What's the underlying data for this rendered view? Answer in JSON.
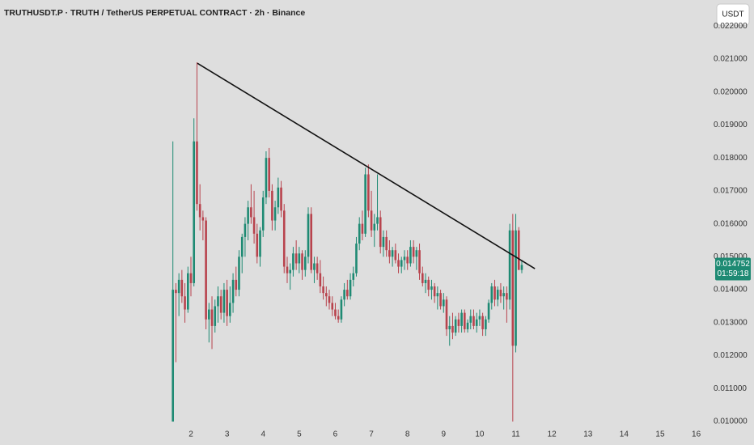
{
  "chart_data": {
    "type": "candlestick",
    "title": "TRUTHUSDT.P · TRUTH / TetherUS PERPETUAL CONTRACT · 2h · Binance",
    "currency_button": "USDT",
    "countdown": "01:59:18",
    "up_color": "#1e8a73",
    "down_color": "#b8434d",
    "grid": false,
    "x": [
      1.5,
      1.583,
      1.667,
      1.75,
      1.833,
      1.917,
      2,
      2.083,
      2.167,
      2.25,
      2.333,
      2.417,
      2.5,
      2.583,
      2.667,
      2.75,
      2.833,
      2.917,
      3,
      3.083,
      3.167,
      3.25,
      3.333,
      3.417,
      3.5,
      3.583,
      3.667,
      3.75,
      3.833,
      3.917,
      4,
      4.083,
      4.167,
      4.25,
      4.333,
      4.417,
      4.5,
      4.583,
      4.667,
      4.75,
      4.833,
      4.917,
      5,
      5.083,
      5.167,
      5.25,
      5.333,
      5.417,
      5.5,
      5.583,
      5.667,
      5.75,
      5.833,
      5.917,
      6,
      6.083,
      6.167,
      6.25,
      6.333,
      6.417,
      6.5,
      6.583,
      6.667,
      6.75,
      6.833,
      6.917,
      7,
      7.083,
      7.167,
      7.25,
      7.333,
      7.417,
      7.5,
      7.583,
      7.667,
      7.75,
      7.833,
      7.917,
      8,
      8.083,
      8.167,
      8.25,
      8.333,
      8.417,
      8.5,
      8.583,
      8.667,
      8.75,
      8.833,
      8.917,
      9,
      9.083,
      9.167,
      9.25,
      9.333,
      9.417,
      9.5,
      9.583,
      9.667,
      9.75,
      9.833,
      9.917,
      10,
      10.083,
      10.167,
      10.25,
      10.333,
      10.417,
      10.5,
      10.583,
      10.667,
      10.75,
      10.833,
      10.917,
      11,
      11.083,
      11.167
    ],
    "open": [
      0.01,
      0.014,
      0.0139,
      0.0143,
      0.0138,
      0.0134,
      0.0145,
      0.0142,
      0.0185,
      0.0166,
      0.0162,
      0.0161,
      0.0131,
      0.0134,
      0.0129,
      0.0135,
      0.0138,
      0.0133,
      0.014,
      0.0132,
      0.0136,
      0.0143,
      0.014,
      0.015,
      0.0156,
      0.016,
      0.0165,
      0.0162,
      0.0157,
      0.015,
      0.0158,
      0.0168,
      0.018,
      0.017,
      0.0161,
      0.0165,
      0.0171,
      0.0164,
      0.0147,
      0.0145,
      0.0146,
      0.0151,
      0.0148,
      0.0151,
      0.0146,
      0.015,
      0.0163,
      0.0146,
      0.0148,
      0.0145,
      0.0141,
      0.0139,
      0.0138,
      0.0136,
      0.0134,
      0.0132,
      0.0131,
      0.0137,
      0.014,
      0.0138,
      0.0143,
      0.0145,
      0.0154,
      0.016,
      0.0157,
      0.0175,
      0.0164,
      0.0158,
      0.016,
      0.0162,
      0.0153,
      0.0156,
      0.0152,
      0.015,
      0.0152,
      0.0149,
      0.0147,
      0.0149,
      0.015,
      0.0148,
      0.0153,
      0.015,
      0.0152,
      0.0145,
      0.0142,
      0.0143,
      0.014,
      0.0141,
      0.0138,
      0.0139,
      0.0135,
      0.0137,
      0.0128,
      0.0129,
      0.0127,
      0.0131,
      0.0129,
      0.0133,
      0.0128,
      0.013,
      0.0132,
      0.0129,
      0.0131,
      0.0132,
      0.0128,
      0.0131,
      0.0136,
      0.0141,
      0.0137,
      0.014,
      0.0138,
      0.0139,
      0.0137,
      0.0158,
      0.0123,
      0.0158,
      0.0146
    ],
    "high": [
      0.0185,
      0.0142,
      0.0145,
      0.0146,
      0.0142,
      0.0147,
      0.015,
      0.0192,
      0.0209,
      0.0172,
      0.0164,
      0.0162,
      0.0136,
      0.0138,
      0.0137,
      0.0141,
      0.014,
      0.0142,
      0.0143,
      0.0141,
      0.0145,
      0.0147,
      0.0152,
      0.0157,
      0.0162,
      0.0167,
      0.0172,
      0.017,
      0.016,
      0.0159,
      0.017,
      0.0182,
      0.0183,
      0.0172,
      0.0167,
      0.0174,
      0.0173,
      0.0166,
      0.015,
      0.0148,
      0.0153,
      0.0155,
      0.0153,
      0.0152,
      0.0152,
      0.0165,
      0.0165,
      0.015,
      0.015,
      0.0149,
      0.0144,
      0.0141,
      0.014,
      0.0138,
      0.0136,
      0.0134,
      0.0138,
      0.0142,
      0.0143,
      0.0145,
      0.0147,
      0.0156,
      0.0162,
      0.0164,
      0.0177,
      0.0178,
      0.017,
      0.0163,
      0.0175,
      0.0164,
      0.0158,
      0.0158,
      0.0155,
      0.0153,
      0.0154,
      0.0151,
      0.015,
      0.0152,
      0.0152,
      0.0155,
      0.0155,
      0.0153,
      0.0154,
      0.0147,
      0.0145,
      0.0144,
      0.0143,
      0.0142,
      0.0141,
      0.014,
      0.0139,
      0.0138,
      0.0132,
      0.0133,
      0.0132,
      0.0133,
      0.0134,
      0.0134,
      0.0131,
      0.0134,
      0.0134,
      0.0133,
      0.0134,
      0.0133,
      0.0132,
      0.0137,
      0.0142,
      0.0143,
      0.0141,
      0.0142,
      0.0141,
      0.0141,
      0.016,
      0.0163,
      0.0163,
      0.0159,
      0.0149
    ],
    "low": [
      0.01,
      0.0118,
      0.0132,
      0.0136,
      0.013,
      0.0133,
      0.0138,
      0.0141,
      0.0164,
      0.0158,
      0.0155,
      0.0128,
      0.0124,
      0.0122,
      0.0127,
      0.013,
      0.0131,
      0.013,
      0.0129,
      0.013,
      0.0133,
      0.0138,
      0.0138,
      0.0145,
      0.015,
      0.0155,
      0.016,
      0.0154,
      0.0148,
      0.0147,
      0.0156,
      0.0166,
      0.0168,
      0.0158,
      0.0158,
      0.0163,
      0.0162,
      0.0145,
      0.0142,
      0.014,
      0.0144,
      0.0146,
      0.0145,
      0.0143,
      0.0144,
      0.0148,
      0.0145,
      0.0142,
      0.0143,
      0.0139,
      0.0137,
      0.0135,
      0.0134,
      0.0132,
      0.0131,
      0.013,
      0.013,
      0.0135,
      0.0137,
      0.0137,
      0.0141,
      0.0144,
      0.0152,
      0.0155,
      0.0156,
      0.0162,
      0.0156,
      0.0153,
      0.0158,
      0.0151,
      0.015,
      0.015,
      0.0148,
      0.0147,
      0.0148,
      0.0145,
      0.0145,
      0.0146,
      0.0146,
      0.0147,
      0.0148,
      0.0146,
      0.0143,
      0.0141,
      0.0139,
      0.0138,
      0.0137,
      0.0136,
      0.0134,
      0.0134,
      0.0133,
      0.0126,
      0.0123,
      0.0125,
      0.0126,
      0.0127,
      0.0127,
      0.0127,
      0.0127,
      0.0128,
      0.0128,
      0.0127,
      0.0129,
      0.0126,
      0.0126,
      0.013,
      0.0134,
      0.0135,
      0.0135,
      0.0136,
      0.0134,
      0.013,
      0.0134,
      0.01,
      0.0121,
      0.0146,
      0.0145
    ],
    "close": [
      0.014,
      0.0139,
      0.0143,
      0.0138,
      0.0134,
      0.0145,
      0.0142,
      0.0185,
      0.0166,
      0.0162,
      0.0161,
      0.0131,
      0.0134,
      0.0129,
      0.0135,
      0.0138,
      0.0133,
      0.014,
      0.0132,
      0.0136,
      0.0143,
      0.014,
      0.015,
      0.0156,
      0.016,
      0.0165,
      0.0162,
      0.0157,
      0.015,
      0.0158,
      0.0168,
      0.018,
      0.017,
      0.0161,
      0.0165,
      0.0171,
      0.0164,
      0.0147,
      0.0145,
      0.0146,
      0.0151,
      0.0148,
      0.0151,
      0.0146,
      0.015,
      0.0163,
      0.0146,
      0.0148,
      0.0145,
      0.0141,
      0.0139,
      0.0138,
      0.0136,
      0.0134,
      0.0132,
      0.0131,
      0.0137,
      0.014,
      0.0138,
      0.0143,
      0.0145,
      0.0154,
      0.016,
      0.0157,
      0.0175,
      0.0164,
      0.0158,
      0.016,
      0.0162,
      0.0153,
      0.0156,
      0.0152,
      0.015,
      0.0152,
      0.0149,
      0.0147,
      0.0149,
      0.015,
      0.0148,
      0.0153,
      0.015,
      0.0152,
      0.0145,
      0.0142,
      0.0143,
      0.014,
      0.0141,
      0.0138,
      0.0139,
      0.0135,
      0.0137,
      0.0128,
      0.0129,
      0.0127,
      0.0131,
      0.0129,
      0.0133,
      0.0128,
      0.013,
      0.0132,
      0.0129,
      0.0131,
      0.0132,
      0.0128,
      0.0131,
      0.0136,
      0.0141,
      0.0137,
      0.014,
      0.0138,
      0.0139,
      0.0137,
      0.0158,
      0.0123,
      0.0158,
      0.0146,
      0.014752
    ],
    "trendline": {
      "x": [
        2.18,
        11.53
      ],
      "y": [
        0.02087,
        0.01464
      ]
    },
    "xlim": [
      -3.29,
      16.39
    ],
    "xticks": [
      2,
      3,
      4,
      5,
      6,
      7,
      8,
      9,
      10,
      11,
      12,
      13,
      14,
      15,
      16
    ],
    "ylim": [
      0.00978,
      0.02279
    ],
    "yticks": [
      {
        "value": 0.01,
        "label": "0.010000"
      },
      {
        "value": 0.011,
        "label": "0.011000"
      },
      {
        "value": 0.012,
        "label": "0.012000"
      },
      {
        "value": 0.013,
        "label": "0.013000"
      },
      {
        "value": 0.014,
        "label": "0.014000"
      },
      {
        "value": 0.015,
        "label": "0.015000"
      },
      {
        "value": 0.016,
        "label": "0.016000"
      },
      {
        "value": 0.017,
        "label": "0.017000"
      },
      {
        "value": 0.018,
        "label": "0.018000"
      },
      {
        "value": 0.019,
        "label": "0.019000"
      },
      {
        "value": 0.02,
        "label": "0.020000"
      },
      {
        "value": 0.021,
        "label": "0.021000"
      },
      {
        "value": 0.022,
        "label": "0.022000"
      }
    ]
  }
}
